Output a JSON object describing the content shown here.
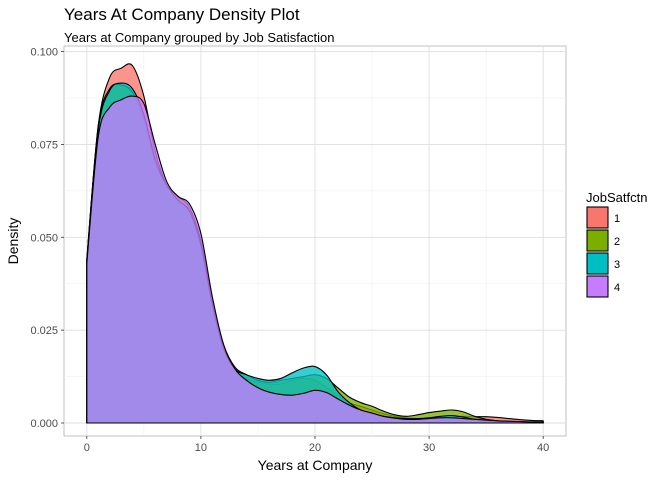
{
  "chart_data": {
    "type": "area",
    "title": "Years At Company Density Plot",
    "subtitle": "Years at Company grouped by Job Satisfaction",
    "xlabel": "Years at Company",
    "ylabel": "Density",
    "xlim": [
      -2,
      42
    ],
    "ylim": [
      -0.0035,
      0.1015
    ],
    "xticks": [
      0,
      10,
      20,
      30,
      40
    ],
    "xtick_labels": [
      "0",
      "10",
      "20",
      "30",
      "40"
    ],
    "yticks": [
      0,
      0.025,
      0.05,
      0.075,
      0.1
    ],
    "ytick_labels": [
      "0.000",
      "0.025",
      "0.050",
      "0.075",
      "0.100"
    ],
    "grid": true,
    "legend": {
      "title": "JobSatfctn",
      "position": "right"
    },
    "series": [
      {
        "name": "1",
        "color": "#F8766D",
        "x": [
          0,
          1,
          2,
          3,
          4,
          5,
          6,
          7,
          8,
          9,
          10,
          11,
          12,
          13,
          14,
          15,
          16,
          17,
          18,
          19,
          20,
          21,
          22,
          23,
          24,
          25,
          26,
          27,
          28,
          29,
          30,
          31,
          32,
          33,
          34,
          35,
          36,
          37,
          38,
          39,
          40
        ],
        "values": [
          0.044,
          0.08,
          0.093,
          0.0955,
          0.0962,
          0.088,
          0.073,
          0.064,
          0.06,
          0.057,
          0.047,
          0.032,
          0.02,
          0.014,
          0.012,
          0.011,
          0.0105,
          0.0105,
          0.0115,
          0.012,
          0.0115,
          0.0095,
          0.0075,
          0.0055,
          0.0045,
          0.0035,
          0.0025,
          0.0018,
          0.0014,
          0.0012,
          0.0011,
          0.0012,
          0.0016,
          0.0018,
          0.0017,
          0.0017,
          0.0015,
          0.0012,
          0.0009,
          0.0007,
          0.0006
        ]
      },
      {
        "name": "2",
        "color": "#7CAE00",
        "x": [
          0,
          1,
          2,
          3,
          4,
          5,
          6,
          7,
          8,
          9,
          10,
          11,
          12,
          13,
          14,
          15,
          16,
          17,
          18,
          19,
          20,
          21,
          22,
          23,
          24,
          25,
          26,
          27,
          28,
          29,
          30,
          31,
          32,
          33,
          34,
          35,
          36,
          37,
          38,
          39,
          40
        ],
        "values": [
          0.044,
          0.08,
          0.09,
          0.091,
          0.089,
          0.082,
          0.07,
          0.064,
          0.061,
          0.058,
          0.049,
          0.033,
          0.021,
          0.015,
          0.013,
          0.0115,
          0.011,
          0.0115,
          0.012,
          0.0125,
          0.013,
          0.012,
          0.0095,
          0.007,
          0.0055,
          0.0045,
          0.0032,
          0.0022,
          0.0018,
          0.0022,
          0.0028,
          0.0032,
          0.0035,
          0.003,
          0.0018,
          0.001,
          0.0006,
          0.0004,
          0.0003,
          0.0002,
          0.0002
        ]
      },
      {
        "name": "3",
        "color": "#00BFC4",
        "x": [
          0,
          1,
          2,
          3,
          4,
          5,
          6,
          7,
          8,
          9,
          10,
          11,
          12,
          13,
          14,
          15,
          16,
          17,
          18,
          19,
          20,
          21,
          22,
          23,
          24,
          25,
          26,
          27,
          28,
          29,
          30,
          31,
          32,
          33,
          34,
          35,
          36,
          37,
          38,
          39,
          40
        ],
        "values": [
          0.044,
          0.079,
          0.0895,
          0.0915,
          0.09,
          0.083,
          0.071,
          0.064,
          0.06,
          0.057,
          0.048,
          0.032,
          0.02,
          0.0145,
          0.013,
          0.012,
          0.0115,
          0.012,
          0.0135,
          0.0148,
          0.0152,
          0.013,
          0.0085,
          0.0055,
          0.0035,
          0.0025,
          0.0018,
          0.0014,
          0.0012,
          0.0012,
          0.0014,
          0.0018,
          0.002,
          0.0016,
          0.001,
          0.0007,
          0.0005,
          0.0004,
          0.0003,
          0.0002,
          0.0002
        ]
      },
      {
        "name": "4",
        "color": "#C77CFF",
        "x": [
          0,
          1,
          2,
          3,
          4,
          5,
          6,
          7,
          8,
          9,
          10,
          11,
          12,
          13,
          14,
          15,
          16,
          17,
          18,
          19,
          20,
          21,
          22,
          23,
          24,
          25,
          26,
          27,
          28,
          29,
          30,
          31,
          32,
          33,
          34,
          35,
          36,
          37,
          38,
          39,
          40
        ],
        "values": [
          0.043,
          0.077,
          0.085,
          0.087,
          0.088,
          0.086,
          0.075,
          0.065,
          0.061,
          0.059,
          0.051,
          0.034,
          0.021,
          0.0145,
          0.0115,
          0.0095,
          0.0083,
          0.0077,
          0.0075,
          0.008,
          0.0088,
          0.0082,
          0.0065,
          0.0048,
          0.0035,
          0.0027,
          0.0018,
          0.0013,
          0.001,
          0.001,
          0.0012,
          0.0014,
          0.0014,
          0.0012,
          0.001,
          0.0008,
          0.0006,
          0.0005,
          0.0004,
          0.0003,
          0.0003
        ]
      }
    ]
  }
}
